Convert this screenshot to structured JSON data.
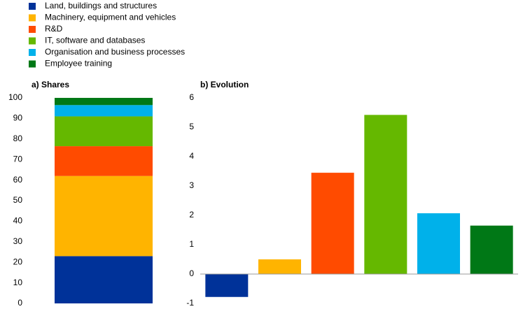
{
  "chart_data": [
    {
      "type": "stacked_bar",
      "title": "a) Shares",
      "series": [
        {
          "name": "Land, buildings and structures",
          "color": "#003299",
          "values": [
            23
          ]
        },
        {
          "name": "Machinery, equipment and vehicles",
          "color": "#ffb400",
          "values": [
            39
          ]
        },
        {
          "name": "R&D",
          "color": "#ff4b00",
          "values": [
            14.5
          ]
        },
        {
          "name": "IT, software and databases",
          "color": "#65b800",
          "values": [
            14.5
          ]
        },
        {
          "name": "Organisation and business processes",
          "color": "#00b1ea",
          "values": [
            5.5
          ]
        },
        {
          "name": "Employee training",
          "color": "#007816",
          "values": [
            3.5
          ]
        }
      ],
      "ylim": [
        0,
        100
      ],
      "yticks": [
        0,
        10,
        20,
        30,
        40,
        50,
        60,
        70,
        80,
        90,
        100
      ],
      "legend": "top-left"
    },
    {
      "type": "bar",
      "title": "b) Evolution",
      "categories": [
        null,
        null,
        null,
        null,
        null,
        null
      ],
      "values": [
        -0.78,
        0.5,
        3.45,
        5.42,
        2.07,
        1.65
      ],
      "colors": [
        "#003299",
        "#ffb400",
        "#ff4b00",
        "#65b800",
        "#00b1ea",
        "#007816"
      ],
      "ylim": [
        -1,
        6
      ],
      "yticks": [
        -1,
        0,
        1,
        2,
        3,
        4,
        5,
        6
      ]
    }
  ]
}
